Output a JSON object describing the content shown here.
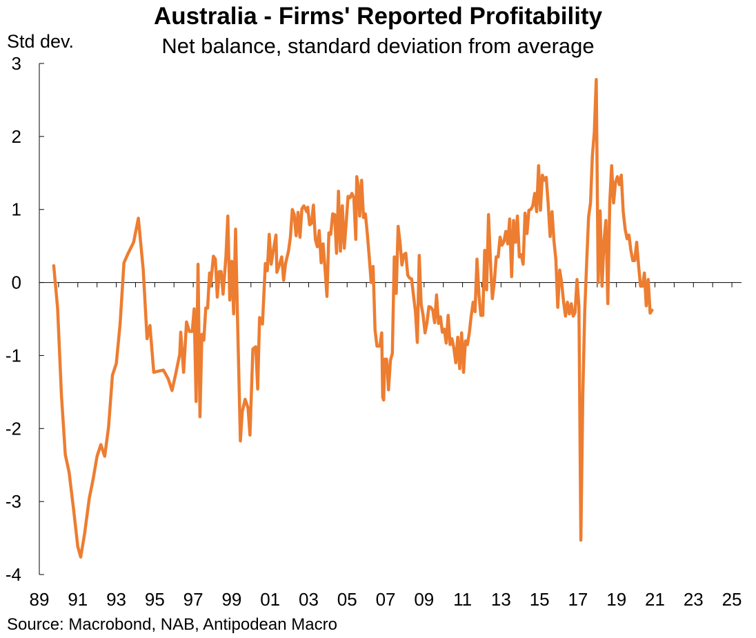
{
  "chart_data": {
    "type": "line",
    "title": "Australia - Firms' Reported Profitability",
    "subtitle": "Net balance, standard deviation from average",
    "ylabel": "Std dev.",
    "xlabel": "",
    "source": "Source: Macrobond, NAB, Antipodean Macro",
    "ylim": [
      -4,
      3
    ],
    "xlim": [
      1989.0,
      2025.5
    ],
    "grid": false,
    "legend": "none",
    "color": "#ED7D31",
    "y_ticks": [
      {
        "value": 3,
        "label": "3"
      },
      {
        "value": 2,
        "label": "2"
      },
      {
        "value": 1,
        "label": "1"
      },
      {
        "value": 0,
        "label": "0"
      },
      {
        "value": -1,
        "label": "-1"
      },
      {
        "value": -2,
        "label": "-2"
      },
      {
        "value": -3,
        "label": "-3"
      },
      {
        "value": -4,
        "label": "-4"
      }
    ],
    "x_ticks": [
      {
        "value": 1989,
        "label": "89"
      },
      {
        "value": 1991,
        "label": "91"
      },
      {
        "value": 1993,
        "label": "93"
      },
      {
        "value": 1995,
        "label": "95"
      },
      {
        "value": 1997,
        "label": "97"
      },
      {
        "value": 1999,
        "label": "99"
      },
      {
        "value": 2001,
        "label": "01"
      },
      {
        "value": 2003,
        "label": "03"
      },
      {
        "value": 2005,
        "label": "05"
      },
      {
        "value": 2007,
        "label": "07"
      },
      {
        "value": 2009,
        "label": "09"
      },
      {
        "value": 2011,
        "label": "11"
      },
      {
        "value": 2013,
        "label": "13"
      },
      {
        "value": 2015,
        "label": "15"
      },
      {
        "value": 2017,
        "label": "17"
      },
      {
        "value": 2019,
        "label": "19"
      },
      {
        "value": 2021,
        "label": "21"
      },
      {
        "value": 2023,
        "label": "23"
      },
      {
        "value": 2025,
        "label": "25"
      }
    ],
    "series": [
      {
        "points": [
          [
            1989.75,
            0.23
          ],
          [
            1989.95,
            -0.35
          ],
          [
            1990.15,
            -1.55
          ],
          [
            1990.35,
            -2.36
          ],
          [
            1990.55,
            -2.6
          ],
          [
            1990.8,
            -3.15
          ],
          [
            1991.0,
            -3.62
          ],
          [
            1991.15,
            -3.76
          ],
          [
            1991.35,
            -3.45
          ],
          [
            1991.6,
            -2.95
          ],
          [
            1991.8,
            -2.69
          ],
          [
            1992.0,
            -2.38
          ],
          [
            1992.2,
            -2.22
          ],
          [
            1992.4,
            -2.38
          ],
          [
            1992.6,
            -1.98
          ],
          [
            1992.8,
            -1.27
          ],
          [
            1993.0,
            -1.11
          ],
          [
            1993.2,
            -0.57
          ],
          [
            1993.4,
            0.27
          ],
          [
            1993.6,
            0.39
          ],
          [
            1993.9,
            0.55
          ],
          [
            1994.15,
            0.88
          ],
          [
            1994.4,
            0.18
          ],
          [
            1994.6,
            -0.77
          ],
          [
            1994.75,
            -0.59
          ],
          [
            1994.95,
            -1.23
          ],
          [
            1995.25,
            -1.21
          ],
          [
            1995.45,
            -1.2
          ],
          [
            1995.7,
            -1.32
          ],
          [
            1995.9,
            -1.48
          ],
          [
            1996.1,
            -1.24
          ],
          [
            1996.3,
            -0.98
          ],
          [
            1996.35,
            -0.68
          ],
          [
            1996.5,
            -1.23
          ],
          [
            1996.65,
            -0.54
          ],
          [
            1996.8,
            -0.67
          ],
          [
            1996.95,
            -0.67
          ],
          [
            1997.05,
            -0.36
          ],
          [
            1997.15,
            -1.63
          ],
          [
            1997.25,
            0.25
          ],
          [
            1997.35,
            -1.84
          ],
          [
            1997.45,
            -0.71
          ],
          [
            1997.55,
            -0.79
          ],
          [
            1997.65,
            -0.35
          ],
          [
            1997.75,
            -0.35
          ],
          [
            1997.85,
            0.13
          ],
          [
            1997.9,
            -0.05
          ],
          [
            1998.05,
            0.36
          ],
          [
            1998.15,
            0.32
          ],
          [
            1998.25,
            -0.2
          ],
          [
            1998.35,
            0.15
          ],
          [
            1998.45,
            0.15
          ],
          [
            1998.55,
            -0.16
          ],
          [
            1998.7,
            0.35
          ],
          [
            1998.8,
            0.91
          ],
          [
            1998.9,
            -0.24
          ],
          [
            1999.0,
            0.29
          ],
          [
            1999.1,
            -0.43
          ],
          [
            1999.2,
            0.73
          ],
          [
            1999.3,
            -0.48
          ],
          [
            1999.45,
            -2.17
          ],
          [
            1999.55,
            -1.77
          ],
          [
            1999.7,
            -1.6
          ],
          [
            1999.85,
            -1.72
          ],
          [
            1999.95,
            -2.09
          ],
          [
            2000.1,
            -0.91
          ],
          [
            2000.25,
            -0.88
          ],
          [
            2000.35,
            -1.46
          ],
          [
            2000.45,
            -0.48
          ],
          [
            2000.6,
            -0.57
          ],
          [
            2000.75,
            0.26
          ],
          [
            2000.85,
            0.16
          ],
          [
            2000.95,
            0.66
          ],
          [
            2001.05,
            0.25
          ],
          [
            2001.15,
            0.42
          ],
          [
            2001.3,
            0.65
          ],
          [
            2001.35,
            0.14
          ],
          [
            2001.5,
            0.26
          ],
          [
            2001.6,
            0.35
          ],
          [
            2001.7,
            0.03
          ],
          [
            2001.8,
            0.26
          ],
          [
            2001.95,
            0.43
          ],
          [
            2002.05,
            0.62
          ],
          [
            2002.15,
            1.0
          ],
          [
            2002.25,
            0.93
          ],
          [
            2002.35,
            0.64
          ],
          [
            2002.45,
            0.96
          ],
          [
            2002.55,
            0.62
          ],
          [
            2002.65,
            1.01
          ],
          [
            2002.75,
            1.05
          ],
          [
            2002.9,
            0.97
          ],
          [
            2002.95,
            1.03
          ],
          [
            2003.05,
            0.79
          ],
          [
            2003.15,
            0.81
          ],
          [
            2003.25,
            1.06
          ],
          [
            2003.35,
            0.59
          ],
          [
            2003.45,
            0.49
          ],
          [
            2003.55,
            0.71
          ],
          [
            2003.65,
            0.27
          ],
          [
            2003.75,
            0.53
          ],
          [
            2003.85,
            0.19
          ],
          [
            2003.95,
            -0.19
          ],
          [
            2004.05,
            0.68
          ],
          [
            2004.15,
            0.66
          ],
          [
            2004.25,
            0.94
          ],
          [
            2004.35,
            0.93
          ],
          [
            2004.45,
            0.4
          ],
          [
            2004.55,
            1.25
          ],
          [
            2004.65,
            0.43
          ],
          [
            2004.75,
            1.05
          ],
          [
            2004.85,
            0.47
          ],
          [
            2004.95,
            0.82
          ],
          [
            2005.05,
            1.18
          ],
          [
            2005.15,
            1.16
          ],
          [
            2005.25,
            1.22
          ],
          [
            2005.35,
            1.16
          ],
          [
            2005.45,
            0.59
          ],
          [
            2005.5,
            1.45
          ],
          [
            2005.6,
            1.28
          ],
          [
            2005.65,
            0.91
          ],
          [
            2005.75,
            1.4
          ],
          [
            2005.85,
            0.89
          ],
          [
            2005.95,
            0.94
          ],
          [
            2006.05,
            0.67
          ],
          [
            2006.15,
            0.35
          ],
          [
            2006.25,
            0.0
          ],
          [
            2006.35,
            0.22
          ],
          [
            2006.45,
            -0.65
          ],
          [
            2006.55,
            -0.87
          ],
          [
            2006.7,
            -0.87
          ],
          [
            2006.8,
            -0.69
          ],
          [
            2006.85,
            -1.57
          ],
          [
            2006.9,
            -1.61
          ],
          [
            2006.95,
            -1.05
          ],
          [
            2007.05,
            -1.05
          ],
          [
            2007.15,
            -1.47
          ],
          [
            2007.25,
            -1.07
          ],
          [
            2007.35,
            -0.97
          ],
          [
            2007.45,
            0.35
          ],
          [
            2007.55,
            -0.15
          ],
          [
            2007.65,
            0.77
          ],
          [
            2007.75,
            0.55
          ],
          [
            2007.85,
            0.24
          ],
          [
            2007.95,
            0.38
          ],
          [
            2008.05,
            0.4
          ],
          [
            2008.15,
            0.1
          ],
          [
            2008.25,
            0.06
          ],
          [
            2008.35,
            0.05
          ],
          [
            2008.45,
            -0.18
          ],
          [
            2008.55,
            -0.4
          ],
          [
            2008.65,
            -0.82
          ],
          [
            2008.75,
            0.37
          ],
          [
            2008.85,
            -0.3
          ],
          [
            2008.95,
            -0.45
          ],
          [
            2009.05,
            -0.69
          ],
          [
            2009.15,
            -0.55
          ],
          [
            2009.25,
            -0.33
          ],
          [
            2009.35,
            -0.34
          ],
          [
            2009.45,
            -0.38
          ],
          [
            2009.55,
            -0.55
          ],
          [
            2009.65,
            -0.17
          ],
          [
            2009.75,
            -0.56
          ],
          [
            2009.85,
            -0.47
          ],
          [
            2009.95,
            -0.68
          ],
          [
            2010.05,
            -0.64
          ],
          [
            2010.15,
            -0.83
          ],
          [
            2010.25,
            -0.45
          ],
          [
            2010.35,
            -0.85
          ],
          [
            2010.45,
            -0.77
          ],
          [
            2010.55,
            -0.9
          ],
          [
            2010.65,
            -1.1
          ],
          [
            2010.75,
            -0.75
          ],
          [
            2010.85,
            -1.18
          ],
          [
            2010.95,
            -0.69
          ],
          [
            2011.05,
            -1.23
          ],
          [
            2011.15,
            -0.8
          ],
          [
            2011.25,
            -0.85
          ],
          [
            2011.35,
            -0.69
          ],
          [
            2011.45,
            -0.46
          ],
          [
            2011.55,
            -0.27
          ],
          [
            2011.65,
            -0.4
          ],
          [
            2011.75,
            0.32
          ],
          [
            2011.85,
            -0.16
          ],
          [
            2011.95,
            -0.45
          ],
          [
            2012.05,
            -0.45
          ],
          [
            2012.15,
            0.44
          ],
          [
            2012.25,
            -0.1
          ],
          [
            2012.35,
            0.93
          ],
          [
            2012.45,
            0.3
          ],
          [
            2012.55,
            -0.22
          ],
          [
            2012.65,
            0.0
          ],
          [
            2012.75,
            0.35
          ],
          [
            2012.85,
            0.35
          ],
          [
            2012.95,
            0.62
          ],
          [
            2013.05,
            0.51
          ],
          [
            2013.15,
            0.56
          ],
          [
            2013.25,
            0.7
          ],
          [
            2013.35,
            0.53
          ],
          [
            2013.45,
            0.87
          ],
          [
            2013.55,
            0.08
          ],
          [
            2013.65,
            0.85
          ],
          [
            2013.75,
            0.55
          ],
          [
            2013.85,
            0.91
          ],
          [
            2013.95,
            0.35
          ],
          [
            2014.05,
            0.38
          ],
          [
            2014.15,
            0.25
          ],
          [
            2014.25,
            0.95
          ],
          [
            2014.35,
            0.67
          ],
          [
            2014.45,
            0.99
          ],
          [
            2014.55,
            1.0
          ],
          [
            2014.65,
            1.05
          ],
          [
            2014.75,
            1.22
          ],
          [
            2014.85,
            0.97
          ],
          [
            2014.95,
            1.6
          ],
          [
            2015.05,
            0.99
          ],
          [
            2015.15,
            1.47
          ],
          [
            2015.25,
            1.4
          ],
          [
            2015.35,
            1.44
          ],
          [
            2015.45,
            1.08
          ],
          [
            2015.55,
            0.63
          ],
          [
            2015.65,
            0.97
          ],
          [
            2015.75,
            0.57
          ],
          [
            2015.85,
            0.31
          ],
          [
            2015.95,
            -0.34
          ],
          [
            2016.05,
            0.17
          ],
          [
            2016.15,
            0.0
          ],
          [
            2016.25,
            -0.26
          ],
          [
            2016.35,
            -0.46
          ],
          [
            2016.45,
            -0.27
          ],
          [
            2016.55,
            -0.43
          ],
          [
            2016.65,
            -0.29
          ],
          [
            2016.75,
            -0.46
          ],
          [
            2016.85,
            -0.41
          ],
          [
            2016.95,
            0.04
          ],
          [
            2017.05,
            -0.33
          ],
          [
            2017.15,
            -3.53
          ],
          [
            2017.25,
            -1.55
          ],
          [
            2017.35,
            -0.4
          ],
          [
            2017.45,
            0.27
          ],
          [
            2017.55,
            0.9
          ],
          [
            2017.65,
            1.09
          ],
          [
            2017.75,
            1.74
          ],
          [
            2017.85,
            2.06
          ],
          [
            2017.95,
            2.78
          ],
          [
            2018.05,
            0.0
          ],
          [
            2018.15,
            0.98
          ],
          [
            2018.25,
            -0.05
          ],
          [
            2018.35,
            0.57
          ],
          [
            2018.45,
            0.85
          ],
          [
            2018.55,
            -0.29
          ],
          [
            2018.65,
            1.09
          ],
          [
            2018.75,
            1.6
          ],
          [
            2018.85,
            1.09
          ],
          [
            2018.95,
            1.37
          ],
          [
            2019.05,
            1.45
          ],
          [
            2019.15,
            1.34
          ],
          [
            2019.25,
            1.47
          ],
          [
            2019.35,
            0.97
          ],
          [
            2019.45,
            0.73
          ],
          [
            2019.55,
            0.6
          ],
          [
            2019.65,
            0.65
          ],
          [
            2019.75,
            0.44
          ],
          [
            2019.85,
            0.3
          ],
          [
            2019.95,
            0.3
          ],
          [
            2020.05,
            0.55
          ],
          [
            2020.15,
            0.23
          ],
          [
            2020.25,
            -0.05
          ],
          [
            2020.35,
            -0.05
          ],
          [
            2020.45,
            0.13
          ],
          [
            2020.55,
            -0.32
          ],
          [
            2020.65,
            0.04
          ],
          [
            2020.75,
            -0.42
          ],
          [
            2020.85,
            -0.38
          ]
        ]
      }
    ]
  }
}
